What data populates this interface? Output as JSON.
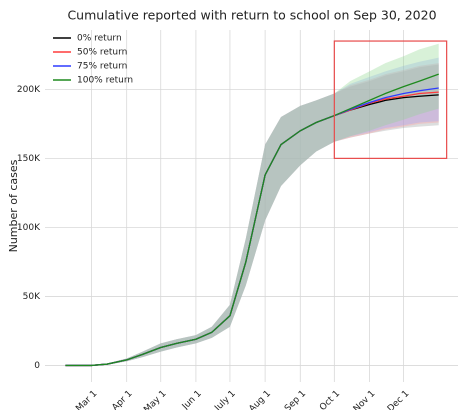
{
  "chart_data": {
    "type": "line",
    "title": "Cumulative reported with return to school on Sep 30, 2020",
    "y_label": "Number of cases",
    "x": [
      "Feb 6",
      "Feb 15",
      "Mar 1",
      "Mar 15",
      "Apr 1",
      "Apr 15",
      "May 1",
      "May 15",
      "Jun 1",
      "Jun 15",
      "Jul 1",
      "Jul 15",
      "Aug 1",
      "Aug 15",
      "Sep 1",
      "Sep 15",
      "Oct 1",
      "Oct 15",
      "Nov 1",
      "Nov 15",
      "Dec 1",
      "Dec 15",
      "Jan 1"
    ],
    "xlim": [
      "Jan 19",
      "Jan 18"
    ],
    "xticks": [
      "Mar 1",
      "Apr 1",
      "May 1",
      "Jun 1",
      "July 1",
      "Aug 1",
      "Sep 1",
      "Oct 1",
      "Nov 1",
      "Dec 1"
    ],
    "ylim": [
      -12000,
      243000
    ],
    "yticks": [
      0,
      {
        "value": 50000,
        "label": "50K"
      },
      {
        "value": 100000,
        "label": "100K"
      },
      {
        "value": 150000,
        "label": "150K"
      },
      {
        "value": 200000,
        "label": "200K"
      }
    ],
    "grid": true,
    "legend": "upper left",
    "series": [
      {
        "name": "0% return",
        "color": "#000000",
        "band_color": "#9aa0a0",
        "values": [
          0,
          0,
          0,
          1000,
          4000,
          8000,
          13000,
          16000,
          19000,
          24000,
          36000,
          75000,
          138000,
          160000,
          170000,
          176000,
          181000,
          185000,
          189000,
          192000,
          194000,
          195000,
          196000
        ],
        "lower": [
          0,
          0,
          0,
          500,
          3000,
          6000,
          10000,
          13000,
          16000,
          20000,
          28000,
          58000,
          105000,
          130000,
          145000,
          155000,
          162000,
          165000,
          168000,
          170000,
          172000,
          173000,
          174000
        ],
        "upper": [
          0,
          0,
          0,
          1500,
          5000,
          10000,
          16000,
          19000,
          22000,
          28000,
          44000,
          92000,
          160000,
          180000,
          188000,
          192000,
          197000,
          202000,
          206000,
          210000,
          213000,
          216000,
          218000
        ]
      },
      {
        "name": "50% return",
        "color": "#ff3b3b",
        "band_color": "#ff9aa0",
        "values": [
          0,
          0,
          0,
          1000,
          4000,
          8000,
          13000,
          16000,
          19000,
          24000,
          36000,
          75000,
          138000,
          160000,
          170000,
          176000,
          181000,
          185000,
          190000,
          193000,
          195000,
          197000,
          198000
        ],
        "lower": [
          0,
          0,
          0,
          500,
          3000,
          6000,
          10000,
          13000,
          16000,
          20000,
          28000,
          58000,
          105000,
          130000,
          145000,
          155000,
          162000,
          165000,
          168000,
          171000,
          173000,
          175000,
          176000
        ],
        "upper": [
          0,
          0,
          0,
          1500,
          5000,
          10000,
          16000,
          19000,
          22000,
          28000,
          44000,
          92000,
          160000,
          180000,
          188000,
          192000,
          197000,
          203000,
          207000,
          211000,
          214000,
          217000,
          219000
        ]
      },
      {
        "name": "75% return",
        "color": "#2e3cff",
        "band_color": "#9aa6ff",
        "values": [
          0,
          0,
          0,
          1000,
          4000,
          8000,
          13000,
          16000,
          19000,
          24000,
          36000,
          75000,
          138000,
          160000,
          170000,
          176000,
          181000,
          185500,
          190500,
          194000,
          197000,
          199000,
          201000
        ],
        "lower": [
          0,
          0,
          0,
          500,
          3000,
          6000,
          10000,
          13000,
          16000,
          20000,
          28000,
          58000,
          105000,
          130000,
          145000,
          155000,
          162000,
          166000,
          169000,
          172000,
          174000,
          176000,
          177000
        ],
        "upper": [
          0,
          0,
          0,
          1500,
          5000,
          10000,
          16000,
          19000,
          22000,
          28000,
          44000,
          92000,
          160000,
          180000,
          188000,
          192000,
          197000,
          204000,
          209000,
          213000,
          217000,
          220000,
          223000
        ]
      },
      {
        "name": "100% return",
        "color": "#1e8a1e",
        "band_color": "#8fd88f",
        "values": [
          0,
          0,
          0,
          1000,
          4000,
          8000,
          13000,
          16000,
          19000,
          24000,
          36000,
          75000,
          138000,
          160000,
          170000,
          176000,
          181000,
          186000,
          192000,
          197000,
          202000,
          206000,
          211000
        ],
        "lower": [
          0,
          0,
          0,
          500,
          3000,
          6000,
          10000,
          13000,
          16000,
          20000,
          28000,
          58000,
          105000,
          130000,
          145000,
          155000,
          162000,
          166000,
          170000,
          174000,
          178000,
          182000,
          186000
        ],
        "upper": [
          0,
          0,
          0,
          1500,
          5000,
          10000,
          16000,
          19000,
          22000,
          28000,
          44000,
          92000,
          160000,
          180000,
          188000,
          192000,
          197000,
          206000,
          213000,
          219000,
          224000,
          229000,
          233000
        ]
      }
    ],
    "highlight_box": {
      "color": "#e84a4a",
      "x": [
        "Oct 1",
        "Jan 8"
      ],
      "y": [
        150000,
        235000
      ]
    }
  }
}
